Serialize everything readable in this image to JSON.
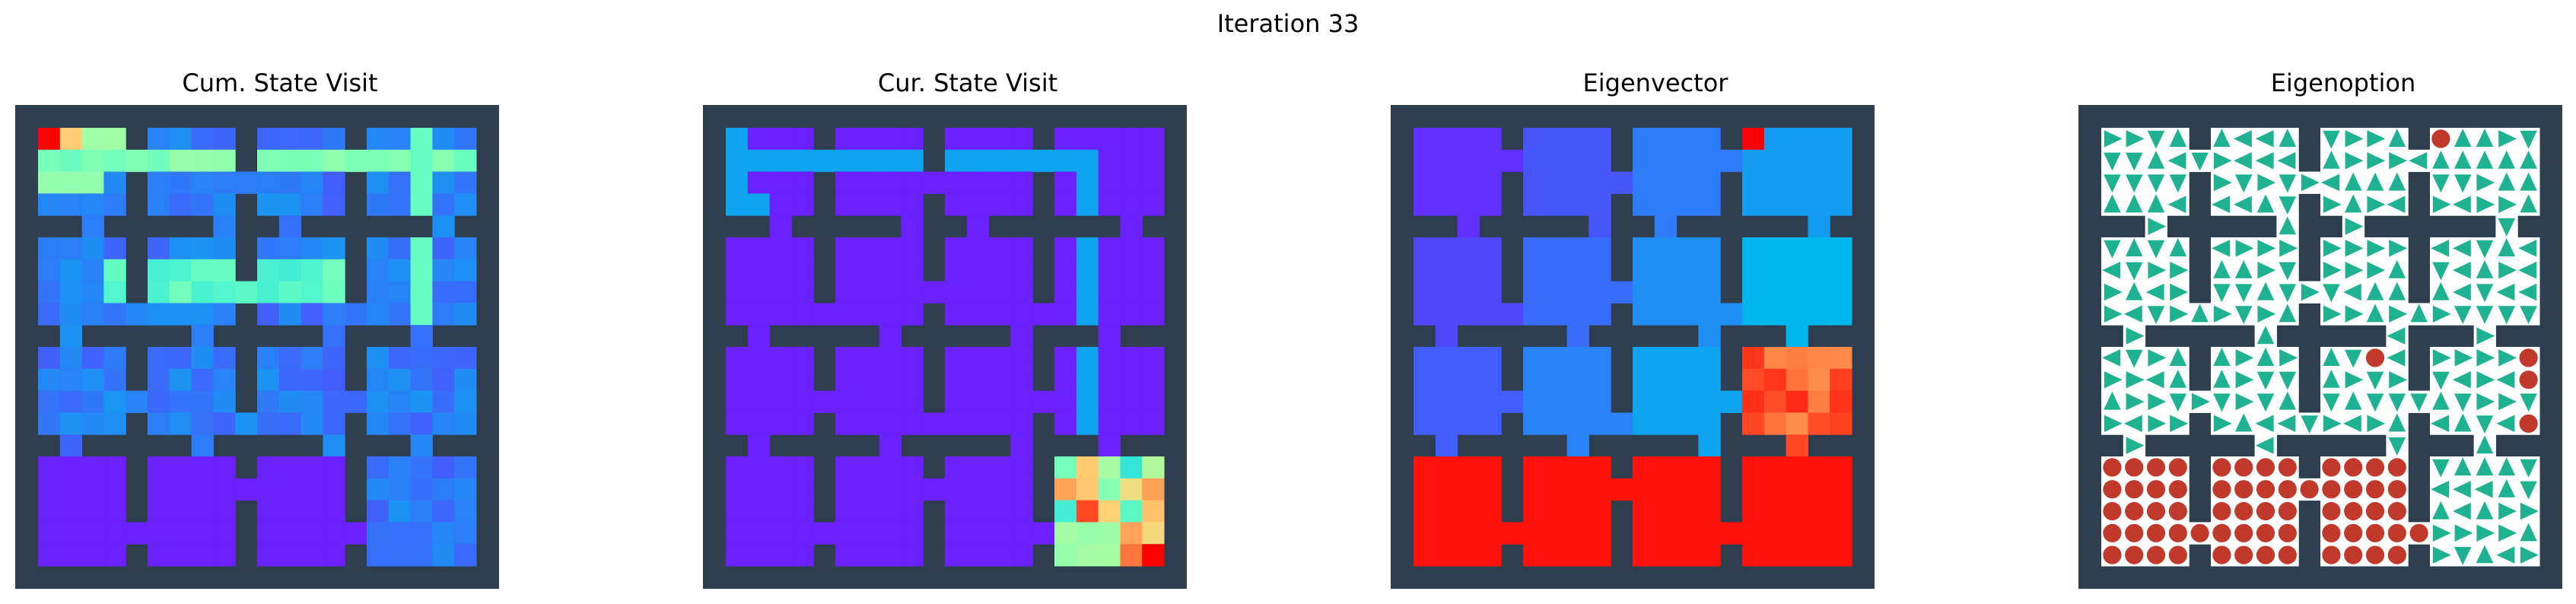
{
  "figure": {
    "suptitle": "Iteration 33"
  },
  "panels": [
    {
      "title": "Cum. State Visit",
      "kind": "heatmap"
    },
    {
      "title": "Cur. State Visit",
      "kind": "heatmap"
    },
    {
      "title": "Eigenvector",
      "kind": "heatmap"
    },
    {
      "title": "Eigenoption",
      "kind": "policy"
    }
  ],
  "colors": {
    "wall": "#2e3e4f",
    "floor": "#ffffff",
    "arrow": "#1eb291",
    "terminal_dot": "#c0392b"
  },
  "chart_data": [
    {
      "type": "heatmap",
      "title": "Cum. State Visit",
      "grid": "4x4 rooms, 20x20 cells",
      "colormap": "rainbow",
      "note": "purple background; cyan trail through top rows; red visited corner at top-left"
    },
    {
      "type": "heatmap",
      "title": "Cur. State Visit",
      "grid": "4x4 rooms, 20x20 cells",
      "colormap": "rainbow",
      "note": "single blue path from top-left to bottom-right room; warm cluster in bottom-right room"
    },
    {
      "type": "heatmap",
      "title": "Eigenvector",
      "grid": "4x4 rooms, 20x20 cells",
      "colormap": "rainbow",
      "note": "low values (purple/blue) top three rows, red bottom row, orange/red in rightmost room of row 3"
    },
    {
      "type": "policy",
      "title": "Eigenoption",
      "grid": "4x4 rooms, 20x20 cells",
      "note": "green triangles show action directions; red dots mark terminal states"
    }
  ]
}
